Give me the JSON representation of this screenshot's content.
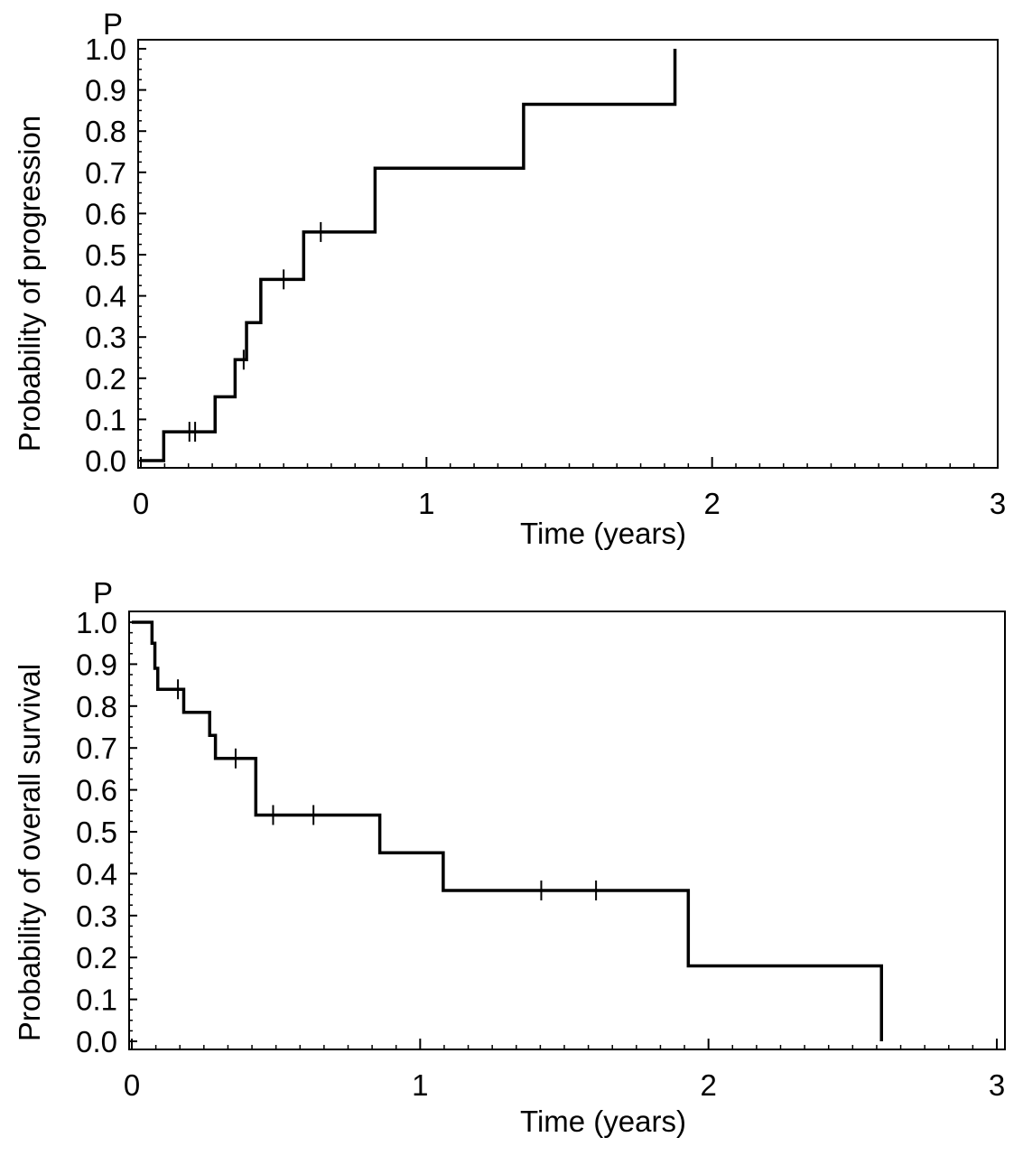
{
  "chart_data": [
    {
      "type": "line",
      "subtype": "step (Kaplan-Meier cumulative incidence)",
      "title": "",
      "corner_label": "P",
      "xlabel": "Time (years)",
      "ylabel": "Probability of progression",
      "xlim": [
        0,
        3
      ],
      "ylim": [
        0,
        1
      ],
      "xticks": [
        "0",
        "1",
        "2",
        "3"
      ],
      "yticks": [
        "0.0",
        "0.1",
        "0.2",
        "0.3",
        "0.4",
        "0.5",
        "0.6",
        "0.7",
        "0.8",
        "0.9",
        "1.0"
      ],
      "series": [
        {
          "name": "Probability of progression",
          "color": "#000000",
          "step_points": [
            {
              "x": 0.0,
              "y": 0.0
            },
            {
              "x": 0.08,
              "y": 0.07
            },
            {
              "x": 0.26,
              "y": 0.155
            },
            {
              "x": 0.33,
              "y": 0.245
            },
            {
              "x": 0.37,
              "y": 0.335
            },
            {
              "x": 0.42,
              "y": 0.44
            },
            {
              "x": 0.57,
              "y": 0.555
            },
            {
              "x": 0.82,
              "y": 0.71
            },
            {
              "x": 1.34,
              "y": 0.865
            },
            {
              "x": 1.87,
              "y": 1.0
            }
          ],
          "end_x": 1.87,
          "censor_marks": [
            {
              "x": 0.17,
              "y": 0.07
            },
            {
              "x": 0.19,
              "y": 0.07
            },
            {
              "x": 0.36,
              "y": 0.245
            },
            {
              "x": 0.5,
              "y": 0.44
            },
            {
              "x": 0.63,
              "y": 0.555
            }
          ]
        }
      ]
    },
    {
      "type": "line",
      "subtype": "step (Kaplan-Meier survival)",
      "title": "",
      "corner_label": "P",
      "xlabel": "Time (years)",
      "ylabel": "Probability of overall survival",
      "xlim": [
        0,
        3
      ],
      "ylim": [
        0,
        1
      ],
      "xticks": [
        "0",
        "1",
        "2",
        "3"
      ],
      "yticks": [
        "0.0",
        "0.1",
        "0.2",
        "0.3",
        "0.4",
        "0.5",
        "0.6",
        "0.7",
        "0.8",
        "0.9",
        "1.0"
      ],
      "series": [
        {
          "name": "Probability of overall survival",
          "color": "#000000",
          "step_points": [
            {
              "x": 0.0,
              "y": 1.0
            },
            {
              "x": 0.07,
              "y": 0.95
            },
            {
              "x": 0.08,
              "y": 0.89
            },
            {
              "x": 0.09,
              "y": 0.84
            },
            {
              "x": 0.18,
              "y": 0.785
            },
            {
              "x": 0.27,
              "y": 0.73
            },
            {
              "x": 0.29,
              "y": 0.675
            },
            {
              "x": 0.43,
              "y": 0.54
            },
            {
              "x": 0.86,
              "y": 0.45
            },
            {
              "x": 1.08,
              "y": 0.36
            },
            {
              "x": 1.93,
              "y": 0.18
            },
            {
              "x": 2.6,
              "y": 0.0
            }
          ],
          "end_x": 2.6,
          "censor_marks": [
            {
              "x": 0.16,
              "y": 0.84
            },
            {
              "x": 0.36,
              "y": 0.675
            },
            {
              "x": 0.49,
              "y": 0.54
            },
            {
              "x": 0.63,
              "y": 0.54
            },
            {
              "x": 1.42,
              "y": 0.36
            },
            {
              "x": 1.61,
              "y": 0.36
            }
          ]
        }
      ]
    }
  ]
}
